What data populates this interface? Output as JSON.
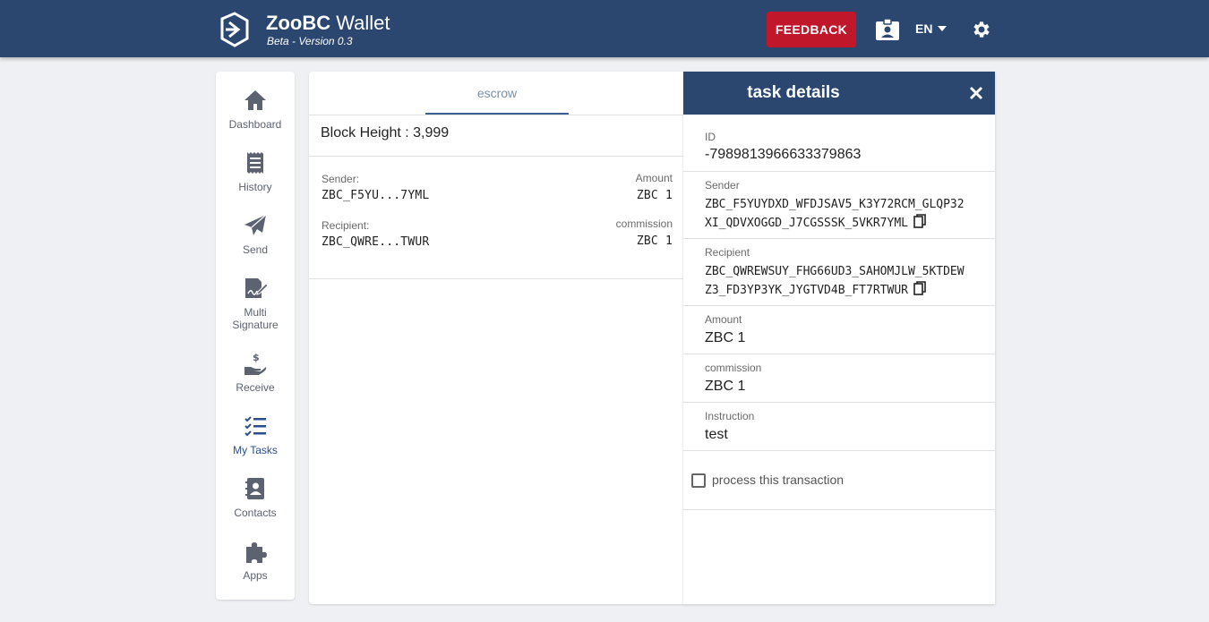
{
  "header": {
    "brand_bold": "ZooBC",
    "brand_rest": " Wallet",
    "subtitle": "Beta - Version 0.3",
    "feedback_label": "FEEDBACK",
    "language": "EN",
    "logo_icon": "zoobc-logo-icon",
    "contact_icon": "contact-card-icon",
    "settings_icon": "gear-icon",
    "colors": {
      "bar": "#2b4770",
      "feedback": "#c0172a"
    }
  },
  "sidebar": {
    "items": [
      {
        "label": "Dashboard",
        "icon": "home-icon"
      },
      {
        "label": "History",
        "icon": "receipt-icon"
      },
      {
        "label": "Send",
        "icon": "send-icon"
      },
      {
        "label": "Multi Signature",
        "icon": "signature-icon"
      },
      {
        "label": "Receive",
        "icon": "receive-money-icon"
      },
      {
        "label": "My Tasks",
        "icon": "tasks-icon",
        "active": true
      },
      {
        "label": "Contacts",
        "icon": "contacts-icon"
      },
      {
        "label": "Apps",
        "icon": "puzzle-icon"
      }
    ]
  },
  "list": {
    "tab": "escrow",
    "block_height": "Block Height : 3,999",
    "transaction": {
      "sender_label": "Sender:",
      "sender": "ZBC_F5YU...7YML",
      "recipient_label": "Recipient:",
      "recipient": "ZBC_QWRE...TWUR",
      "amount_label": "Amount",
      "amount": "ZBC 1",
      "commission_label": "commission",
      "commission": "ZBC 1"
    }
  },
  "details": {
    "title": "task details",
    "id_label": "ID",
    "id": "-7989813966633379863",
    "sender_label": "Sender",
    "sender_line1": "ZBC_F5YUYDXD_WFDJSAV5_K3Y72RCM_GLQP32",
    "sender_line2": "XI_QDVXOGGD_J7CGSSSK_5VKR7YML",
    "recipient_label": "Recipient",
    "recipient_line1": "ZBC_QWREWSUY_FHG66UD3_SAHOMJLW_5KTDEW",
    "recipient_line2": "Z3_FD3YP3YK_JYGTVD4B_FT7RTWUR",
    "amount_label": "Amount",
    "amount": "ZBC 1",
    "commission_label": "commission",
    "commission": "ZBC 1",
    "instruction_label": "Instruction",
    "instruction": "test",
    "checkbox_label": "process this transaction",
    "checkbox_checked": false
  }
}
